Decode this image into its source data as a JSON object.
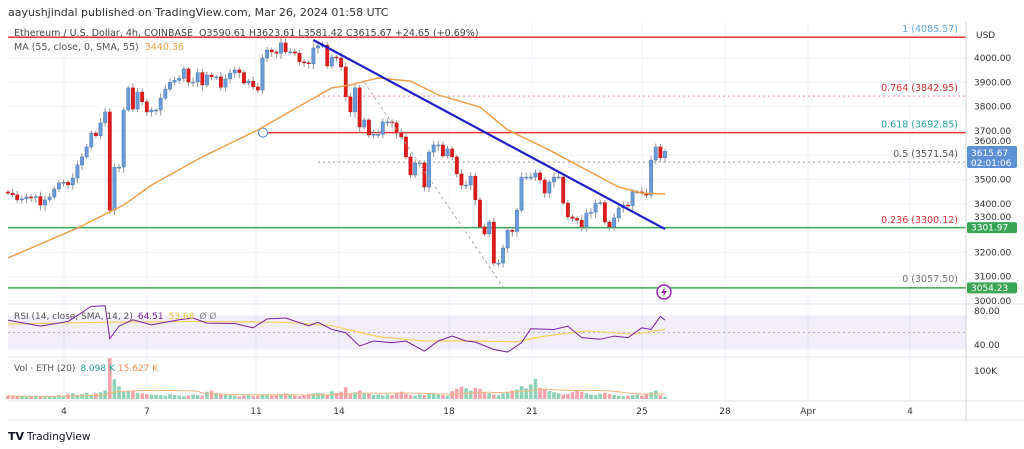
{
  "header": {
    "published": "aayushjindal published on TradingView.com, Mar 26, 2024 01:58 UTC"
  },
  "legend": {
    "symbol": "Ethereum / U.S. Dollar, 4h, COINBASE",
    "ohlc": "O3590.61  H3623.61  L3581.42  C3615.67  +24.65 (+0.69%)",
    "ma_label": "MA (55, close, 0, SMA, 55)",
    "ma_value": "3440.36",
    "rsi_label": "RSI (14, close, SMA, 14, 2)",
    "rsi_value": "64.51",
    "rsi_sma_value": "53.68",
    "rsi_extra": "Ø  Ø",
    "vol_label": "Vol · ETH (20)",
    "vol_value": "8.098 K",
    "vol_ma_value": "15.627 K"
  },
  "axis": {
    "currency": "USD",
    "price_ticks": [
      "4000.00",
      "3900.00",
      "3800.00",
      "3700.00",
      "3600.00",
      "3500.00",
      "3400.00",
      "3300.00",
      "3200.00",
      "3100.00",
      "3000.00"
    ],
    "current_price": "3615.67",
    "countdown": "02:01:06",
    "rsi_ticks": [
      "80.00",
      "40.00"
    ],
    "vol_tick": "100K",
    "date_ticks": [
      "4",
      "7",
      "11",
      "14",
      "18",
      "21",
      "25",
      "28",
      "Apr",
      "4"
    ]
  },
  "levels": {
    "green_1": "3301.97",
    "green_2": "3054.23"
  },
  "fib": [
    {
      "label": "1 (4085.57)",
      "price": 4085.57,
      "color": "#5aa9e6"
    },
    {
      "label": "0.764 (3842.95)",
      "price": 3842.95,
      "color": "#d32f2f"
    },
    {
      "label": "0.618 (3692.85)",
      "price": 3692.85,
      "color": "#22a699"
    },
    {
      "label": "0.5 (3571.54)",
      "price": 3571.54,
      "color": "#555555"
    },
    {
      "label": "0.236 (3300.12)",
      "price": 3300.12,
      "color": "#d32f2f"
    },
    {
      "label": "0 (3057.50)",
      "price": 3057.5,
      "color": "#777777"
    }
  ],
  "colors": {
    "up": "#6a9bd8",
    "down": "#e01b1b",
    "ma": "#f0a04b",
    "trend": "#1f1fc8",
    "support": "#3aa655",
    "resistance": "#e53935",
    "rsi": "#7b1fa2",
    "rsi_sma": "#f2d35b",
    "price_badge": "#5b8fd6"
  },
  "footer": {
    "brand": "TradingView"
  },
  "chart_data": {
    "type": "candlestick",
    "interval": "4h",
    "ylim": [
      3000,
      4100
    ],
    "closes": [
      3444,
      3437,
      3416,
      3420,
      3428,
      3426,
      3430,
      3395,
      3416,
      3428,
      3461,
      3486,
      3489,
      3478,
      3506,
      3560,
      3593,
      3634,
      3691,
      3680,
      3733,
      3778,
      3374,
      3551,
      3551,
      3786,
      3877,
      3790,
      3860,
      3820,
      3778,
      3786,
      3786,
      3835,
      3872,
      3900,
      3908,
      3916,
      3955,
      3901,
      3901,
      3940,
      3889,
      3930,
      3922,
      3922,
      3880,
      3914,
      3938,
      3951,
      3940,
      3897,
      3905,
      3881,
      3868,
      4000,
      4033,
      4025,
      4020,
      4062,
      4025,
      4025,
      4020,
      3984,
      3980,
      3976,
      4041,
      4050,
      4052,
      3967,
      4004,
      4000,
      3963,
      3840,
      3778,
      3877,
      3716,
      3745,
      3683,
      3686,
      3686,
      3737,
      3737,
      3733,
      3691,
      3675,
      3593,
      3519,
      3568,
      3568,
      3469,
      3613,
      3642,
      3642,
      3597,
      3626,
      3593,
      3523,
      3477,
      3477,
      3514,
      3416,
      3305,
      3276,
      3325,
      3156,
      3156,
      3218,
      3292,
      3286,
      3374,
      3510,
      3510,
      3510,
      3527,
      3498,
      3444,
      3490,
      3510,
      3510,
      3403,
      3346,
      3340,
      3333,
      3305,
      3362,
      3365,
      3403,
      3405,
      3325,
      3305,
      3342,
      3383,
      3395,
      3392,
      3449,
      3449,
      3445,
      3436,
      3580,
      3634,
      3589,
      3615.67
    ],
    "ma55": [
      [
        0,
        3177
      ],
      [
        15,
        3300
      ],
      [
        25,
        3395
      ],
      [
        31,
        3477
      ],
      [
        42,
        3593
      ],
      [
        54,
        3704
      ],
      [
        63,
        3802
      ],
      [
        70,
        3877
      ],
      [
        74,
        3889
      ],
      [
        80,
        3918
      ],
      [
        87,
        3905
      ],
      [
        93,
        3848
      ],
      [
        102,
        3798
      ],
      [
        108,
        3704
      ],
      [
        117,
        3621
      ],
      [
        123,
        3560
      ],
      [
        132,
        3469
      ],
      [
        137,
        3444
      ],
      [
        142,
        3440.36
      ]
    ],
    "trendline": [
      [
        66,
        4074
      ],
      [
        142,
        3296
      ]
    ],
    "swing_line": [
      [
        77,
        3900
      ],
      [
        107,
        3057.5
      ]
    ],
    "rsi": [
      [
        0,
        64.5
      ],
      [
        7,
        57.5
      ],
      [
        13,
        63
      ],
      [
        18,
        80.8
      ],
      [
        21,
        81.5
      ],
      [
        22,
        42.7
      ],
      [
        24,
        57.5
      ],
      [
        27,
        65
      ],
      [
        31,
        59
      ],
      [
        37,
        65
      ],
      [
        40,
        67
      ],
      [
        43,
        61
      ],
      [
        49,
        60.6
      ],
      [
        53,
        55.5
      ],
      [
        56,
        66
      ],
      [
        60,
        67
      ],
      [
        65,
        58
      ],
      [
        67,
        62
      ],
      [
        70,
        53.6
      ],
      [
        73,
        49.7
      ],
      [
        76,
        34
      ],
      [
        79,
        40
      ],
      [
        83,
        38
      ],
      [
        86,
        40
      ],
      [
        90,
        28
      ],
      [
        93,
        40
      ],
      [
        96,
        45.8
      ],
      [
        99,
        40
      ],
      [
        101,
        38.8
      ],
      [
        105,
        30
      ],
      [
        108,
        27
      ],
      [
        111,
        38
      ],
      [
        113,
        54.4
      ],
      [
        118,
        53.6
      ],
      [
        121,
        57.5
      ],
      [
        124,
        44
      ],
      [
        128,
        42
      ],
      [
        131,
        45.8
      ],
      [
        134,
        44
      ],
      [
        137,
        55.5
      ],
      [
        139,
        53.6
      ],
      [
        141,
        69
      ],
      [
        142,
        64.51
      ]
    ],
    "rsi_sma": [
      [
        0,
        60
      ],
      [
        20,
        62
      ],
      [
        40,
        63
      ],
      [
        60,
        62
      ],
      [
        70,
        58
      ],
      [
        80,
        45
      ],
      [
        90,
        40
      ],
      [
        100,
        40
      ],
      [
        110,
        39
      ],
      [
        115,
        45
      ],
      [
        125,
        52
      ],
      [
        135,
        48
      ],
      [
        142,
        53.68
      ]
    ],
    "rsi_bands": [
      70,
      30
    ],
    "volume_k": [
      12,
      10,
      9,
      9,
      8,
      10,
      9,
      8,
      11,
      9,
      10,
      14,
      12,
      16,
      20,
      15,
      18,
      22,
      16,
      20,
      24,
      30,
      146,
      70,
      45,
      25,
      30,
      28,
      22,
      20,
      18,
      16,
      15,
      14,
      12,
      18,
      14,
      12,
      10,
      12,
      16,
      14,
      12,
      26,
      30,
      22,
      16,
      18,
      14,
      12,
      10,
      12,
      14,
      10,
      12,
      16,
      14,
      12,
      14,
      18,
      20,
      14,
      12,
      10,
      14,
      18,
      20,
      22,
      20,
      16,
      28,
      22,
      26,
      42,
      20,
      24,
      30,
      22,
      18,
      14,
      16,
      12,
      16,
      14,
      20,
      26,
      18,
      14,
      12,
      16,
      14,
      18,
      22,
      16,
      14,
      12,
      28,
      36,
      44,
      38,
      30,
      40,
      36,
      24,
      20,
      16,
      14,
      20,
      26,
      30,
      34,
      46,
      38,
      52,
      72,
      40,
      36,
      28,
      24,
      20,
      16,
      18,
      24,
      30,
      26,
      20,
      16,
      14,
      18,
      22,
      18,
      14,
      12,
      10,
      12,
      14,
      16,
      12,
      18,
      24,
      30,
      14,
      8.098
    ]
  }
}
